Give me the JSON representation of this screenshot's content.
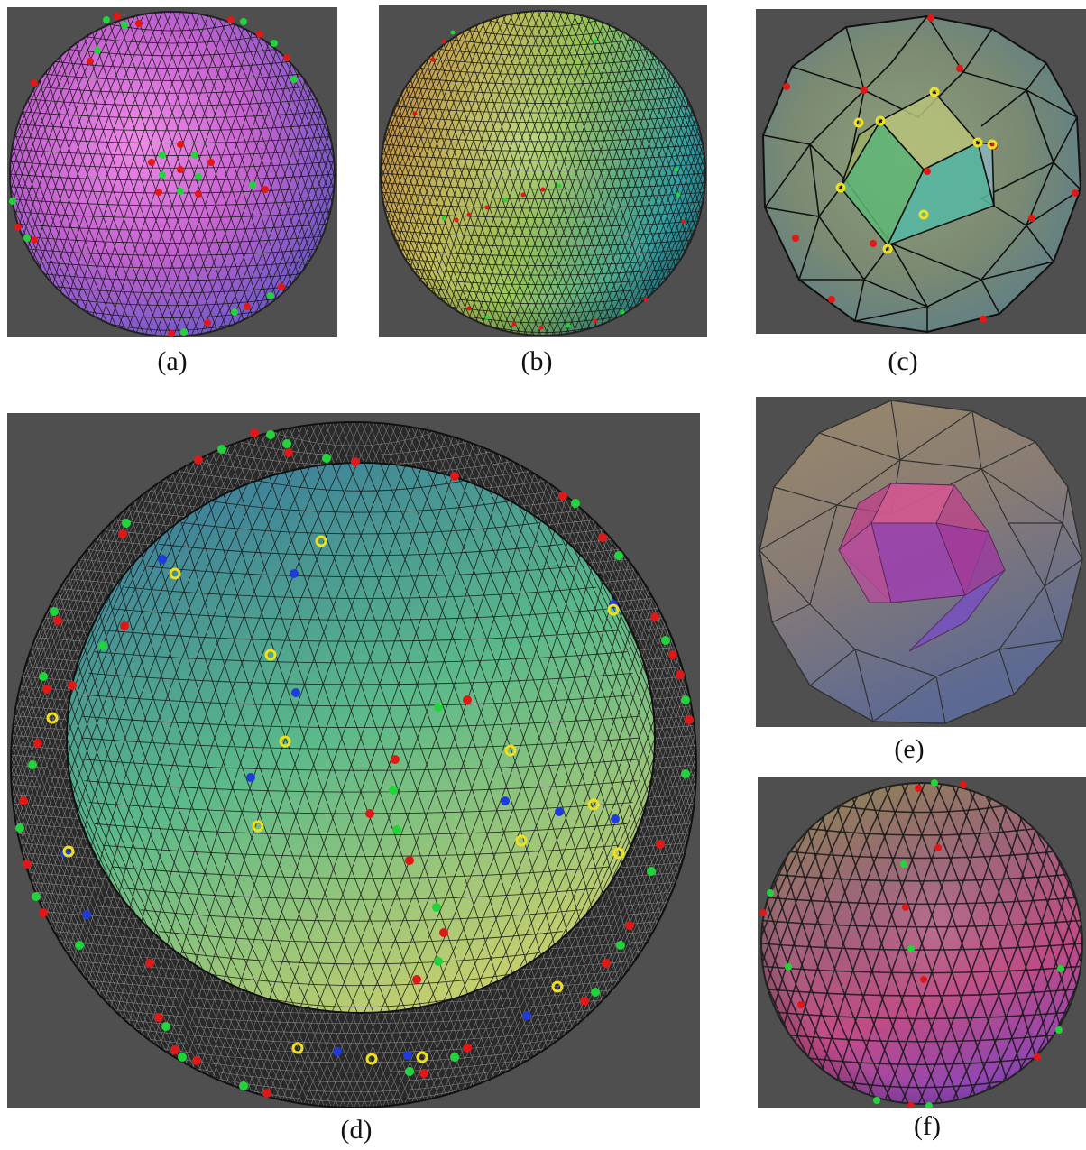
{
  "figure": {
    "panels": [
      {
        "id": "a",
        "caption": "(a)",
        "depicts": "pink-violet triangulated sphere with red and green vertex markers",
        "colors": {
          "fill_main": "#d46ad6",
          "fill_shade": "#7d5ad1"
        }
      },
      {
        "id": "b",
        "caption": "(b)",
        "depicts": "orange-green-cyan triangulated sphere with red and green vertex markers",
        "colors": {
          "fill_main": "#b4c654",
          "fill_shade": "#3fb3a6"
        }
      },
      {
        "id": "c",
        "caption": "(c)",
        "depicts": "translucent geodesic polyhedron containing an inner octahedron with yellow markers",
        "colors": {
          "fill_main": "#8aa07a",
          "fill_shade": "#5e8c8c"
        }
      },
      {
        "id": "d",
        "caption": "(d)",
        "depicts": "large cut-open spherical shell with dense mesh and red, green, blue, yellow vertex markers",
        "colors": {
          "fill_main": "#5fb98b",
          "fill_shade": "#d2cf6c"
        }
      },
      {
        "id": "e",
        "caption": "(e)",
        "depicts": "translucent geodesic polyhedron containing an inner magenta icosahedron",
        "colors": {
          "fill_main": "#8d7f6e",
          "fill_shade": "#8c3c8c"
        }
      },
      {
        "id": "f",
        "caption": "(f)",
        "depicts": "pink-olive coarse triangulated sphere with red and green vertex markers",
        "colors": {
          "fill_main": "#b45c84",
          "fill_shade": "#8a6ac0"
        }
      }
    ],
    "marker_colors": {
      "red": "#e01818",
      "green": "#22d43c",
      "blue": "#1f3bdc",
      "yellow": "#f0e020"
    },
    "background_color": "#4f4f4f"
  }
}
